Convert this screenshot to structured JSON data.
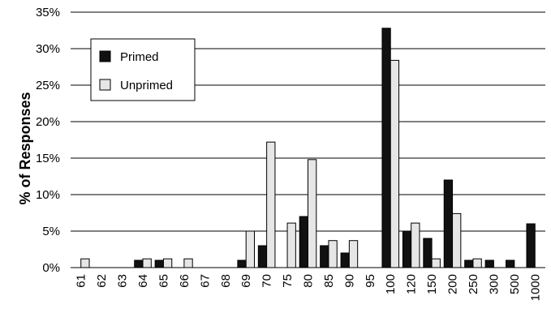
{
  "chart_data": {
    "type": "bar",
    "ylabel": "% of Responses",
    "xlabel": "",
    "categories": [
      "61",
      "62",
      "63",
      "64",
      "65",
      "66",
      "67",
      "68",
      "69",
      "70",
      "75",
      "80",
      "85",
      "90",
      "95",
      "100",
      "120",
      "150",
      "200",
      "250",
      "300",
      "500",
      "1000"
    ],
    "series": [
      {
        "name": "Primed",
        "color": "#111111",
        "values": [
          0,
          0,
          0,
          1,
          1,
          0,
          0,
          0,
          1,
          3,
          0,
          7,
          3,
          2,
          0,
          32.8,
          5,
          4,
          12,
          1,
          1,
          1,
          6
        ]
      },
      {
        "name": "Unprimed",
        "color": "#e6e6e6",
        "values": [
          1.2,
          0,
          0,
          1.2,
          1.2,
          1.2,
          0,
          0,
          5,
          17.2,
          6.1,
          14.8,
          3.7,
          3.7,
          0,
          28.4,
          6.1,
          1.2,
          7.4,
          1.2,
          0,
          0,
          0
        ]
      }
    ],
    "ylim": [
      0,
      35
    ],
    "yticks": [
      0,
      5,
      10,
      15,
      20,
      25,
      30,
      35
    ],
    "ytick_labels": [
      "0%",
      "5%",
      "10%",
      "15%",
      "20%",
      "25%",
      "30%",
      "35%"
    ],
    "legend_position": "top-left",
    "grid": "horizontal"
  }
}
